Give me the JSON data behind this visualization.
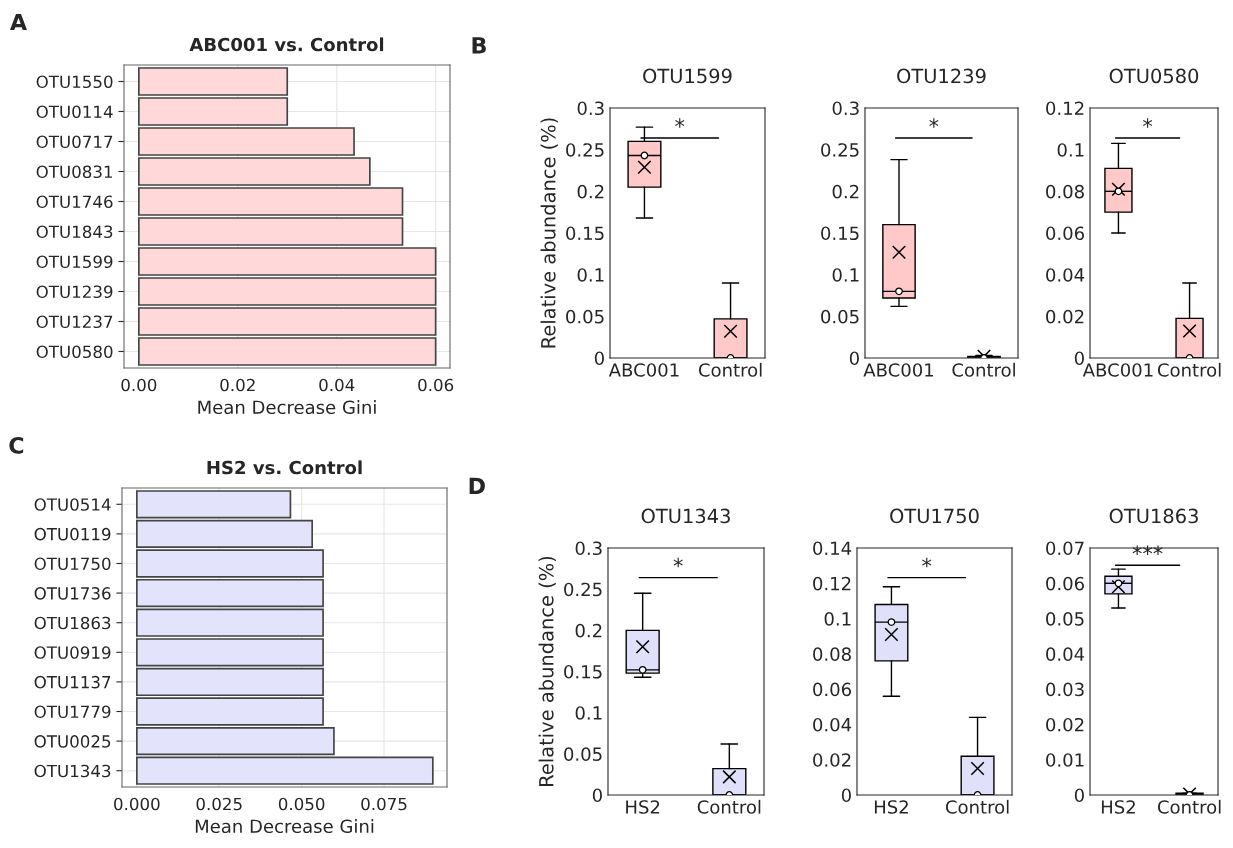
{
  "chart_data": [
    {
      "type": "bar",
      "orientation": "horizontal",
      "title": "ABC001 vs. Control",
      "xlabel": "Mean Decrease Gini",
      "annotations": [
        "A"
      ],
      "categories": [
        "OTU1550",
        "OTU0114",
        "OTU0717",
        "OTU0831",
        "OTU1746",
        "OTU1843",
        "OTU1599",
        "OTU1239",
        "OTU1237",
        "OTU0580"
      ],
      "values": [
        0.03,
        0.03,
        0.0435,
        0.0467,
        0.0533,
        0.0533,
        0.06,
        0.06,
        0.06,
        0.06
      ],
      "color": "#ffd9d9",
      "xlim": [
        -0.003,
        0.0629
      ],
      "xticks": [
        {
          "value": 0,
          "label": "0.00"
        },
        {
          "value": 0.02,
          "label": "0.02"
        },
        {
          "value": 0.04,
          "label": "0.04"
        },
        {
          "value": 0.06,
          "label": "0.06"
        }
      ],
      "grid": true
    },
    {
      "type": "box",
      "title": "OTU1599",
      "ylabel": "Relative abundance (%)",
      "annotations": [
        "B",
        "*"
      ],
      "categories": [
        "ABC001",
        "Control"
      ],
      "color": "#ffc9c9",
      "ylim": [
        0,
        0.3
      ],
      "yticks": [
        0,
        0.05,
        0.1,
        0.15,
        0.2,
        0.25,
        0.3
      ],
      "boxes": [
        {
          "low": 0.168,
          "q1": 0.205,
          "median": 0.243,
          "q3": 0.26,
          "high": 0.277,
          "mean": 0.229
        },
        {
          "low": 0,
          "q1": 0,
          "median": 0,
          "q3": 0.047,
          "high": 0.09,
          "mean": 0.032
        }
      ],
      "series": [
        {
          "type": "scatter",
          "marker": "circle",
          "color": "#ffffff",
          "x": [
            "ABC001",
            "Control"
          ],
          "values": [
            0.243,
            0
          ]
        }
      ]
    },
    {
      "type": "box",
      "title": "OTU1239",
      "annotations": [
        "*"
      ],
      "categories": [
        "ABC001",
        "Control"
      ],
      "color": "#ffc9c9",
      "ylim": [
        0,
        0.3
      ],
      "yticks": [
        0,
        0.05,
        0.1,
        0.15,
        0.2,
        0.25,
        0.3
      ],
      "boxes": [
        {
          "low": 0.062,
          "q1": 0.072,
          "median": 0.08,
          "q3": 0.16,
          "high": 0.238,
          "mean": 0.127
        },
        {
          "low": 0,
          "q1": 0,
          "median": 0,
          "q3": 0.002,
          "high": 0.003,
          "mean": 0.002
        }
      ],
      "series": [
        {
          "type": "scatter",
          "marker": "circle",
          "color": "#ffffff",
          "x": [
            "ABC001",
            "Control"
          ],
          "values": [
            0.08,
            0
          ]
        }
      ]
    },
    {
      "type": "box",
      "title": "OTU0580",
      "annotations": [
        "*"
      ],
      "categories": [
        "ABC001",
        "Control"
      ],
      "color": "#ffc9c9",
      "ylim": [
        0,
        0.12
      ],
      "yticks": [
        0,
        0.02,
        0.04,
        0.06,
        0.08,
        0.1,
        0.12
      ],
      "boxes": [
        {
          "low": 0.06,
          "q1": 0.07,
          "median": 0.08,
          "q3": 0.091,
          "high": 0.103,
          "mean": 0.081
        },
        {
          "low": 0,
          "q1": 0,
          "median": 0,
          "q3": 0.019,
          "high": 0.036,
          "mean": 0.013
        }
      ],
      "series": [
        {
          "type": "scatter",
          "marker": "circle",
          "color": "#ffffff",
          "x": [
            "ABC001",
            "Control"
          ],
          "values": [
            0.08,
            0
          ]
        }
      ]
    },
    {
      "type": "bar",
      "orientation": "horizontal",
      "title": "HS2 vs. Control",
      "xlabel": "Mean Decrease Gini",
      "annotations": [
        "C"
      ],
      "categories": [
        "OTU0514",
        "OTU0119",
        "OTU1750",
        "OTU1736",
        "OTU1863",
        "OTU0919",
        "OTU1137",
        "OTU1779",
        "OTU0025",
        "OTU1343"
      ],
      "values": [
        0.0466,
        0.0532,
        0.0565,
        0.0565,
        0.0565,
        0.0565,
        0.0565,
        0.0565,
        0.0598,
        0.0898
      ],
      "color": "#e3e3fb",
      "xlim": [
        -0.0045,
        0.0941
      ],
      "xticks": [
        {
          "value": 0,
          "label": "0.000"
        },
        {
          "value": 0.025,
          "label": "0.025"
        },
        {
          "value": 0.05,
          "label": "0.050"
        },
        {
          "value": 0.075,
          "label": "0.075"
        }
      ],
      "grid": true
    },
    {
      "type": "box",
      "title": "OTU1343",
      "ylabel": "Relative abundance (%)",
      "annotations": [
        "D",
        "*"
      ],
      "categories": [
        "HS2",
        "Control"
      ],
      "color": "#e0e0fa",
      "ylim": [
        0,
        0.3
      ],
      "yticks": [
        0,
        0.05,
        0.1,
        0.15,
        0.2,
        0.25,
        0.3
      ],
      "boxes": [
        {
          "low": 0.143,
          "q1": 0.148,
          "median": 0.152,
          "q3": 0.2,
          "high": 0.245,
          "mean": 0.18
        },
        {
          "low": 0,
          "q1": 0,
          "median": 0,
          "q3": 0.032,
          "high": 0.062,
          "mean": 0.022
        }
      ],
      "series": [
        {
          "type": "scatter",
          "marker": "circle",
          "color": "#ffffff",
          "x": [
            "HS2",
            "Control"
          ],
          "values": [
            0.152,
            0
          ]
        }
      ]
    },
    {
      "type": "box",
      "title": "OTU1750",
      "annotations": [
        "*"
      ],
      "categories": [
        "HS2",
        "Control"
      ],
      "color": "#e0e0fa",
      "ylim": [
        0,
        0.14
      ],
      "yticks": [
        0,
        0.02,
        0.04,
        0.06,
        0.08,
        0.1,
        0.12,
        0.14
      ],
      "boxes": [
        {
          "low": 0.056,
          "q1": 0.076,
          "median": 0.098,
          "q3": 0.108,
          "high": 0.118,
          "mean": 0.091
        },
        {
          "low": 0,
          "q1": 0,
          "median": 0,
          "q3": 0.022,
          "high": 0.044,
          "mean": 0.015
        }
      ],
      "series": [
        {
          "type": "scatter",
          "marker": "circle",
          "color": "#ffffff",
          "x": [
            "HS2",
            "Control"
          ],
          "values": [
            0.098,
            0
          ]
        }
      ]
    },
    {
      "type": "box",
      "title": "OTU1863",
      "annotations": [
        "***"
      ],
      "categories": [
        "HS2",
        "Control"
      ],
      "color": "#e0e0fa",
      "ylim": [
        0,
        0.07
      ],
      "yticks": [
        0,
        0.01,
        0.02,
        0.03,
        0.04,
        0.05,
        0.06,
        0.07
      ],
      "boxes": [
        {
          "low": 0.053,
          "q1": 0.057,
          "median": 0.06,
          "q3": 0.062,
          "high": 0.064,
          "mean": 0.059
        },
        {
          "low": 0,
          "q1": 0,
          "median": 0,
          "q3": 0.0005,
          "high": 0.0005,
          "mean": 0.0003
        }
      ],
      "series": [
        {
          "type": "scatter",
          "marker": "circle",
          "color": "#ffffff",
          "x": [
            "HS2",
            "Control"
          ],
          "values": [
            0.06,
            0
          ]
        }
      ]
    }
  ]
}
